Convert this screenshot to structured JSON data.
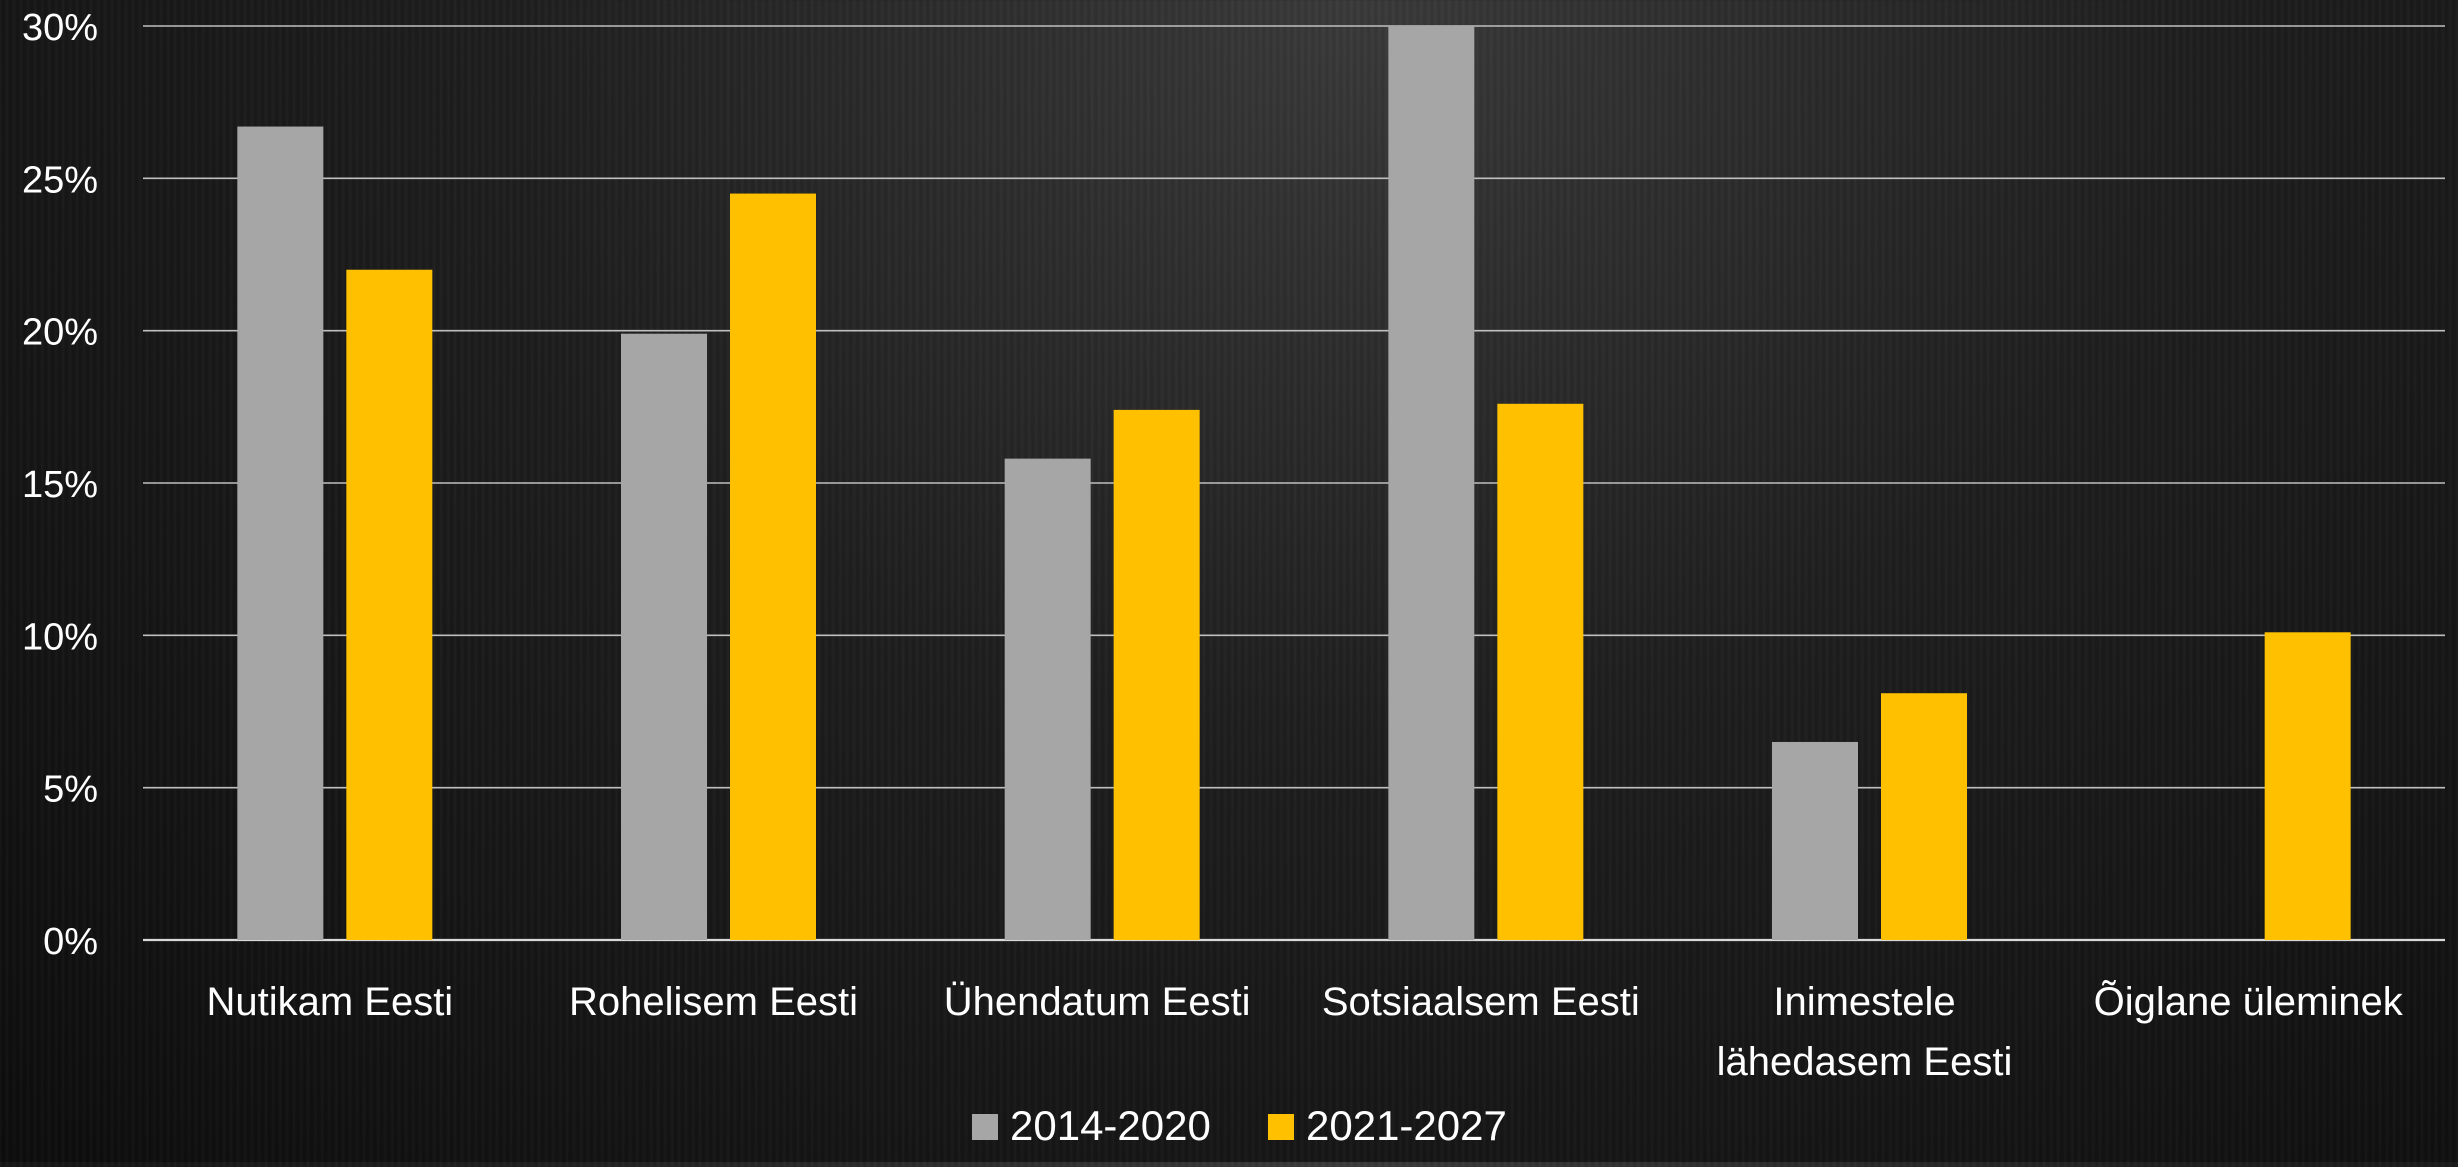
{
  "chart_data": {
    "type": "bar",
    "categories": [
      [
        "Nutikam Eesti"
      ],
      [
        "Rohelisem Eesti"
      ],
      [
        "Ühendatum Eesti"
      ],
      [
        "Sotsiaalsem Eesti"
      ],
      [
        "Inimestele",
        "lähedasem Eesti"
      ],
      [
        "Õiglane üleminek"
      ]
    ],
    "series": [
      {
        "name": "2014-2020",
        "color": "#a6a6a6",
        "values": [
          26.7,
          19.9,
          15.8,
          30.0,
          6.5,
          null
        ]
      },
      {
        "name": "2021-2027",
        "color": "#ffc000",
        "values": [
          22.0,
          24.5,
          17.4,
          17.6,
          8.1,
          10.1
        ]
      }
    ],
    "y_ticks": [
      "0%",
      "5%",
      "10%",
      "15%",
      "20%",
      "25%",
      "30%"
    ],
    "ylim": [
      0,
      30
    ],
    "grid": true,
    "legend_position": "bottom-center"
  }
}
